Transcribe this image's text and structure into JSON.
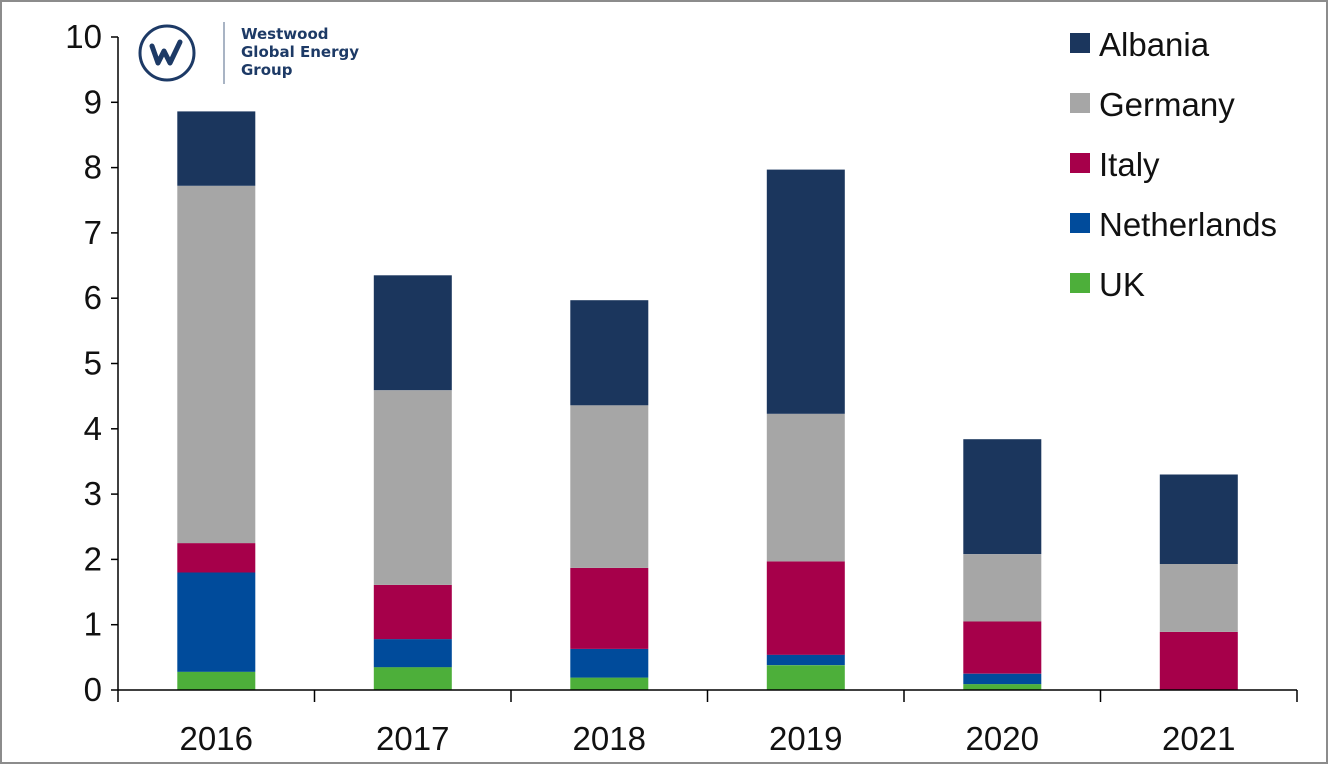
{
  "logo": {
    "line1": "Westwood",
    "line2": "Global Energy",
    "line3": "Group",
    "color": "#1d3a66"
  },
  "chart_data": {
    "type": "bar",
    "stacked": true,
    "categories": [
      "2016",
      "2017",
      "2018",
      "2019",
      "2020",
      "2021"
    ],
    "series": [
      {
        "name": "UK",
        "color": "#4daf3a",
        "values": [
          0.28,
          0.35,
          0.19,
          0.38,
          0.09,
          0.0
        ]
      },
      {
        "name": "Netherlands",
        "color": "#004b9b",
        "values": [
          1.52,
          0.43,
          0.44,
          0.16,
          0.16,
          0.0
        ]
      },
      {
        "name": "Italy",
        "color": "#a6004a",
        "values": [
          0.45,
          0.83,
          1.24,
          1.43,
          0.8,
          0.89
        ]
      },
      {
        "name": "Germany",
        "color": "#a6a6a6",
        "values": [
          5.47,
          2.98,
          2.49,
          2.26,
          1.03,
          1.04
        ]
      },
      {
        "name": "Albania",
        "color": "#1b365d",
        "values": [
          1.14,
          1.76,
          1.61,
          3.74,
          1.76,
          1.37
        ]
      }
    ],
    "legend_order": [
      "Albania",
      "Germany",
      "Italy",
      "Netherlands",
      "UK"
    ],
    "ylim": [
      0,
      10
    ],
    "yticks": [
      "0",
      "1",
      "2",
      "3",
      "4",
      "5",
      "6",
      "7",
      "8",
      "9",
      "10"
    ],
    "grid": false,
    "legend_position": "top-right"
  }
}
